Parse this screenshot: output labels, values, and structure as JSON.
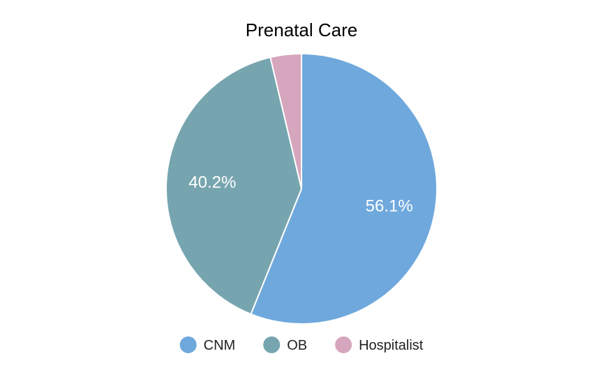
{
  "chart_data": {
    "type": "pie",
    "title": "Prenatal Care",
    "legend_position": "bottom",
    "slices": [
      {
        "name": "CNM",
        "value": 56.1,
        "label": "56.1%",
        "color": "#6fa8dc"
      },
      {
        "name": "OB",
        "value": 40.2,
        "label": "40.2%",
        "color": "#76a5af"
      },
      {
        "name": "Hospitalist",
        "value": 3.7,
        "label": "",
        "color": "#d5a6bd"
      }
    ],
    "start_angle_deg": 0,
    "direction": "clockwise",
    "slice_border_color": "#ffffff"
  }
}
